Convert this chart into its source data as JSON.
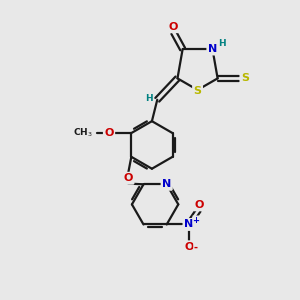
{
  "bg_color": "#e8e8e8",
  "C_color": "#1a1a1a",
  "N_color": "#0000cc",
  "O_color": "#cc0000",
  "S_color": "#b8b800",
  "H_color": "#008080",
  "lw": 1.6,
  "fs": 8.0,
  "xlim": [
    0,
    10
  ],
  "ylim": [
    0,
    10
  ],
  "figsize": [
    3.0,
    3.0
  ],
  "dpi": 100
}
